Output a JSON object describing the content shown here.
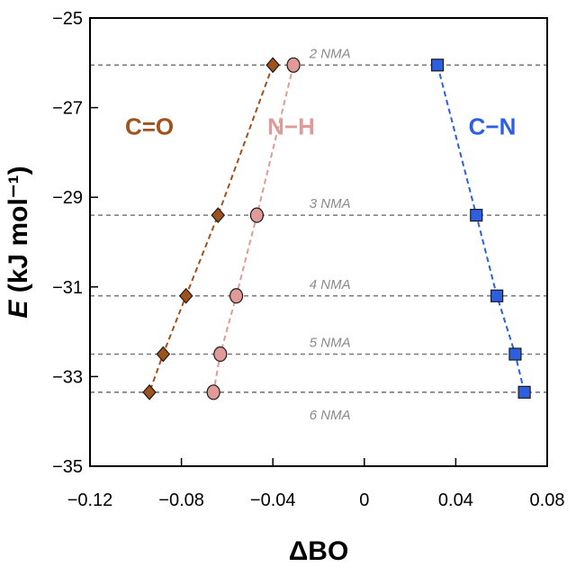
{
  "chart_data": {
    "type": "scatter",
    "title": "",
    "xlabel": "ΔBO",
    "ylabel_symbol": "E",
    "ylabel_unit": " (kJ mol⁻¹)",
    "xlim": [
      -0.12,
      0.08
    ],
    "ylim": [
      -35,
      -25
    ],
    "xticks": [
      -0.12,
      -0.08,
      -0.04,
      0,
      0.04,
      0.08
    ],
    "xtick_labels": [
      "−0.12",
      "−0.08",
      "−0.04",
      "0",
      "0.04",
      "0.08"
    ],
    "yticks": [
      -25,
      -27,
      -29,
      -31,
      -33,
      -35
    ],
    "ytick_labels": [
      "−25",
      "−27",
      "−29",
      "−31",
      "−33",
      "−35"
    ],
    "grid": false,
    "reference_lines": [
      {
        "label": "2 NMA",
        "y": -26.05,
        "label_pos": "above"
      },
      {
        "label": "3 NMA",
        "y": -29.4,
        "label_pos": "above"
      },
      {
        "label": "4 NMA",
        "y": -31.2,
        "label_pos": "above"
      },
      {
        "label": "5 NMA",
        "y": -32.5,
        "label_pos": "above"
      },
      {
        "label": "6 NMA",
        "y": -33.35,
        "label_pos": "below"
      }
    ],
    "series": [
      {
        "name": "C=O",
        "color": "#a0521c",
        "marker": "diamond",
        "label_pos": [
          -0.094,
          -27.6
        ],
        "points": [
          {
            "x": -0.04,
            "y": -26.05
          },
          {
            "x": -0.064,
            "y": -29.4
          },
          {
            "x": -0.078,
            "y": -31.2
          },
          {
            "x": -0.088,
            "y": -32.5
          },
          {
            "x": -0.094,
            "y": -33.35
          }
        ]
      },
      {
        "name": "N−H",
        "color": "#e09a98",
        "marker": "circle",
        "label_pos": [
          -0.032,
          -27.6
        ],
        "points": [
          {
            "x": -0.031,
            "y": -26.05
          },
          {
            "x": -0.047,
            "y": -29.4
          },
          {
            "x": -0.056,
            "y": -31.2
          },
          {
            "x": -0.063,
            "y": -32.5
          },
          {
            "x": -0.066,
            "y": -33.35
          }
        ]
      },
      {
        "name": "C−N",
        "color": "#2d5fe0",
        "marker": "square",
        "label_pos": [
          0.056,
          -27.6
        ],
        "points": [
          {
            "x": 0.032,
            "y": -26.05
          },
          {
            "x": 0.049,
            "y": -29.4
          },
          {
            "x": 0.058,
            "y": -31.2
          },
          {
            "x": 0.066,
            "y": -32.5
          },
          {
            "x": 0.07,
            "y": -33.35
          }
        ]
      }
    ]
  }
}
